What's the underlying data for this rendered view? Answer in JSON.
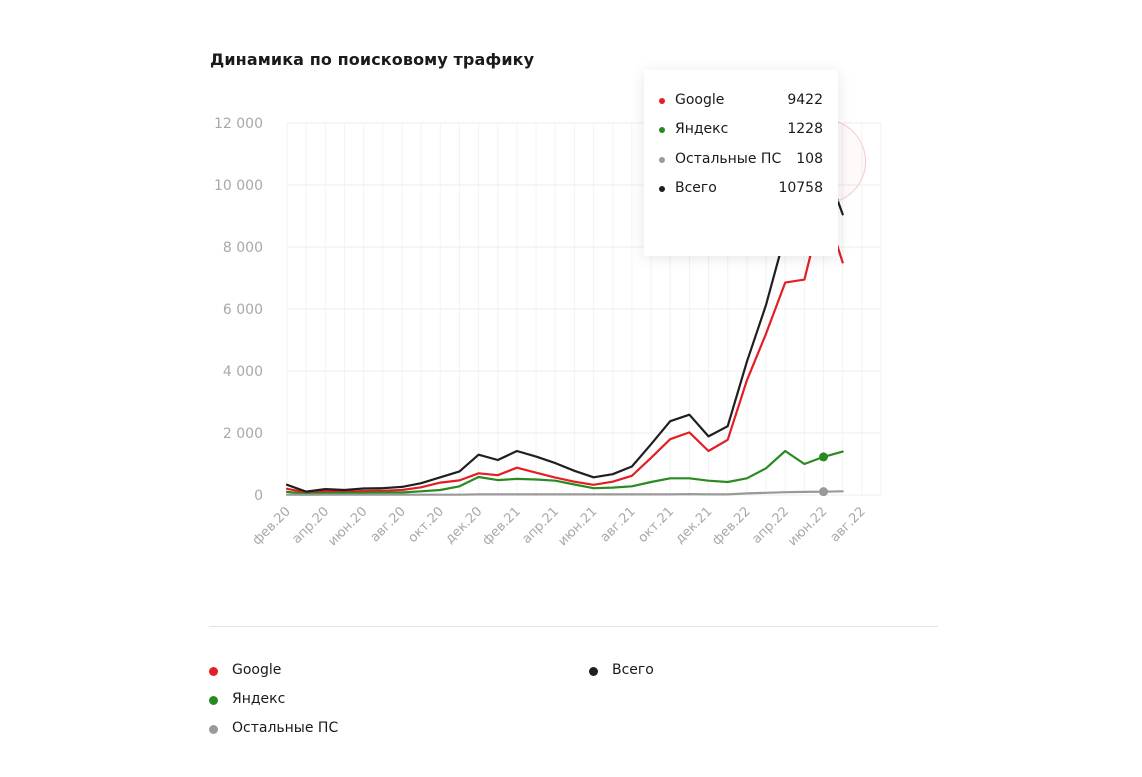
{
  "title": "Динамика по поисковому трафику",
  "chart_data": {
    "type": "line",
    "title": "Динамика по поисковому трафику",
    "xlabel": "",
    "ylabel": "",
    "ylim": [
      0,
      12000
    ],
    "yticks": [
      0,
      2000,
      4000,
      6000,
      8000,
      10000,
      12000
    ],
    "ytick_labels": [
      "0",
      "2 000",
      "4 000",
      "6 000",
      "8 000",
      "10 000",
      "12 000"
    ],
    "x": [
      "фев.20",
      "мар.20",
      "апр.20",
      "май.20",
      "июн.20",
      "июл.20",
      "авг.20",
      "сен.20",
      "окт.20",
      "ноя.20",
      "дек.20",
      "янв.21",
      "фев.21",
      "мар.21",
      "апр.21",
      "май.21",
      "июн.21",
      "июл.21",
      "авг.21",
      "сен.21",
      "окт.21",
      "ноя.21",
      "дек.21",
      "янв.22",
      "фев.22",
      "мар.22",
      "апр.22",
      "май.22",
      "июн.22",
      "июл.22",
      "авг.22",
      "сен.22"
    ],
    "xtick_labels": [
      "фев.20",
      "апр.20",
      "июн.20",
      "авг.20",
      "окт.20",
      "дек.20",
      "фев.21",
      "апр.21",
      "июн.21",
      "авг.21",
      "окт.21",
      "дек.21",
      "фев.22",
      "апр.22",
      "июн.22",
      "авг.22"
    ],
    "grid": true,
    "legend_position": "bottom",
    "series": [
      {
        "name": "Google",
        "color": "#e31e24",
        "values": [
          200,
          80,
          120,
          100,
          130,
          140,
          160,
          250,
          400,
          470,
          700,
          640,
          880,
          720,
          560,
          430,
          330,
          430,
          620,
          1200,
          1800,
          2020,
          1420,
          1780,
          3700,
          5200,
          6850,
          6950,
          9422,
          7500,
          null,
          null
        ]
      },
      {
        "name": "Яндекс",
        "color": "#2a8a22",
        "values": [
          100,
          40,
          60,
          60,
          70,
          80,
          80,
          120,
          160,
          280,
          580,
          480,
          520,
          500,
          460,
          340,
          220,
          240,
          280,
          420,
          540,
          540,
          460,
          420,
          540,
          860,
          1420,
          1000,
          1228,
          1400,
          null,
          null
        ]
      },
      {
        "name": "Остальные ПС",
        "color": "#999999",
        "values": [
          10,
          5,
          10,
          10,
          10,
          10,
          10,
          10,
          10,
          10,
          20,
          20,
          20,
          20,
          20,
          20,
          20,
          20,
          20,
          20,
          20,
          30,
          20,
          20,
          50,
          70,
          90,
          100,
          108,
          120,
          null,
          null
        ]
      },
      {
        "name": "Всего",
        "color": "#1f1f1f",
        "values": [
          330,
          110,
          190,
          160,
          210,
          220,
          260,
          380,
          570,
          760,
          1300,
          1130,
          1420,
          1240,
          1030,
          780,
          570,
          670,
          920,
          1640,
          2380,
          2590,
          1890,
          2220,
          4300,
          6130,
          8400,
          8050,
          10758,
          9050,
          null,
          null
        ]
      }
    ],
    "highlight_index": 28
  },
  "tooltip": {
    "rows": [
      {
        "name": "Google",
        "value": "9422",
        "color": "#e31e24"
      },
      {
        "name": "Яндекс",
        "value": "1228",
        "color": "#2a8a22"
      },
      {
        "name": "Остальные ПС",
        "value": "108",
        "color": "#999999"
      },
      {
        "name": "Всего",
        "value": "10758",
        "color": "#1f1f1f"
      }
    ]
  },
  "legend": {
    "google": {
      "label": "Google",
      "color": "#e31e24"
    },
    "yandex": {
      "label": "Яндекс",
      "color": "#2a8a22"
    },
    "other": {
      "label": "Остальные ПС",
      "color": "#999999"
    },
    "total": {
      "label": "Всего",
      "color": "#1f1f1f"
    }
  }
}
